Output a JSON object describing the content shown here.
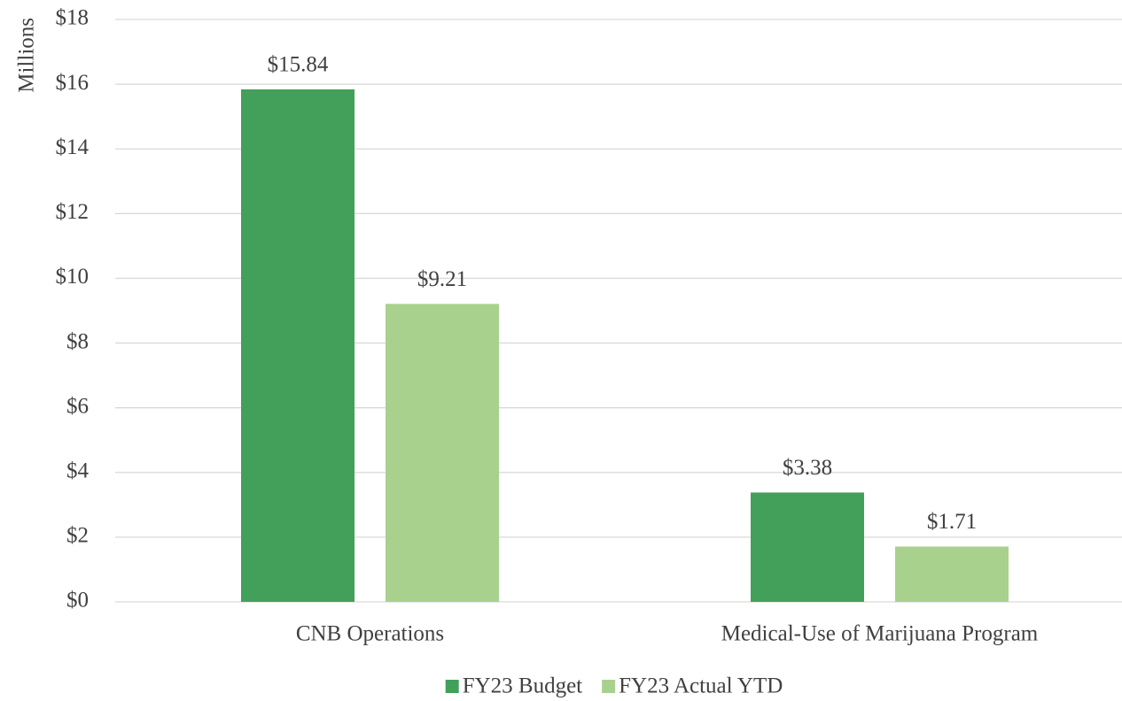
{
  "chart_data": {
    "type": "bar",
    "y_axis_label": "Millions",
    "categories": [
      "CNB Operations",
      "Medical-Use of Marijuana Program"
    ],
    "series": [
      {
        "name": "FY23 Budget",
        "color": "#43a05a",
        "values": [
          15.84,
          3.38
        ],
        "value_labels": [
          "$15.84",
          "$3.38"
        ]
      },
      {
        "name": "FY23 Actual YTD",
        "color": "#a9d18e",
        "values": [
          9.21,
          1.71
        ],
        "value_labels": [
          "$9.21",
          "$1.71"
        ]
      }
    ],
    "ylim": [
      0,
      18
    ],
    "yticks": [
      {
        "value": 0,
        "label": "$0"
      },
      {
        "value": 2,
        "label": "$2"
      },
      {
        "value": 4,
        "label": "$4"
      },
      {
        "value": 6,
        "label": "$6"
      },
      {
        "value": 8,
        "label": "$8"
      },
      {
        "value": 10,
        "label": "$10"
      },
      {
        "value": 12,
        "label": "$12"
      },
      {
        "value": 14,
        "label": "$14"
      },
      {
        "value": 16,
        "label": "$16"
      },
      {
        "value": 18,
        "label": "$18"
      }
    ],
    "grid": true,
    "legend": "bottom"
  }
}
